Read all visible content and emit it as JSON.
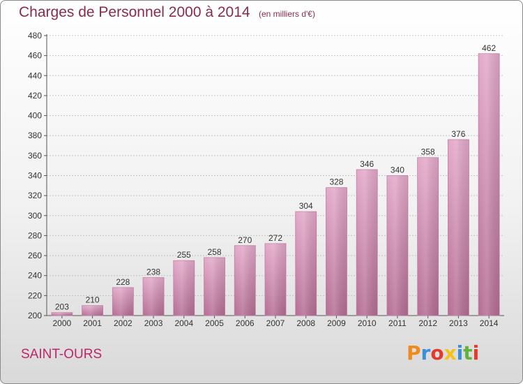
{
  "chart_data": {
    "type": "bar",
    "title": "Charges de Personnel 2000 à 2014",
    "subtitle": "(en milliers d'€)",
    "categories": [
      "2000",
      "2001",
      "2002",
      "2003",
      "2004",
      "2005",
      "2006",
      "2007",
      "2008",
      "2009",
      "2010",
      "2011",
      "2012",
      "2013",
      "2014"
    ],
    "values": [
      203,
      210,
      228,
      238,
      255,
      258,
      270,
      272,
      304,
      328,
      346,
      340,
      358,
      376,
      462
    ],
    "ylim": [
      200,
      480
    ],
    "yticks": [
      200,
      220,
      240,
      260,
      280,
      300,
      320,
      340,
      360,
      380,
      400,
      420,
      440,
      460,
      480
    ],
    "grid": true,
    "bar_color": "#d992b8"
  },
  "footer": {
    "commune": "SAINT-OURS",
    "logo_letters": [
      "P",
      "r",
      "o",
      "x",
      "i",
      "t",
      "i"
    ],
    "logo_colors": [
      "#f08a1c",
      "#3b8ed8",
      "#e23a2c",
      "#f6c21a",
      "#3b8ed8",
      "#62b33c",
      "#e23a2c"
    ]
  }
}
